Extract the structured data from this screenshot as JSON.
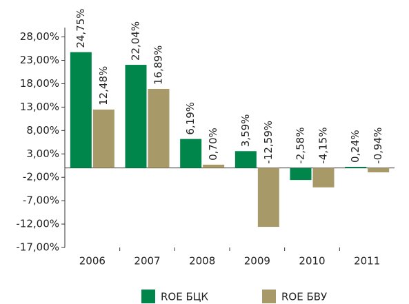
{
  "chart_data": {
    "type": "bar",
    "categories": [
      "2006",
      "2007",
      "2008",
      "2009",
      "2010",
      "2011"
    ],
    "series": [
      {
        "name": "ROE БЦК",
        "color": "#00854a",
        "values": [
          24.75,
          22.04,
          6.19,
          3.59,
          -2.58,
          0.24
        ],
        "value_labels": [
          "24,75%",
          "22,04%",
          "6,19%",
          "3,59%",
          "-2,58%",
          "0,24%"
        ]
      },
      {
        "name": "ROE БВУ",
        "color": "#a89968",
        "values": [
          12.48,
          16.89,
          0.7,
          -12.59,
          -4.15,
          -0.94
        ],
        "value_labels": [
          "12,48%",
          "16,89%",
          "0,70%",
          "-12,59%",
          "-4,15%",
          "-0,94%"
        ]
      }
    ],
    "ylim": [
      -17,
      30
    ],
    "yticks": [
      {
        "value": 28,
        "label": "28,00%"
      },
      {
        "value": 23,
        "label": "23,00%"
      },
      {
        "value": 18,
        "label": "18,00%"
      },
      {
        "value": 13,
        "label": "13,00%"
      },
      {
        "value": 8,
        "label": "8,00%"
      },
      {
        "value": 3,
        "label": "3,00%"
      },
      {
        "value": -2,
        "label": "-2,00%"
      },
      {
        "value": -7,
        "label": "-7,00%"
      },
      {
        "value": -12,
        "label": "-12,00%"
      },
      {
        "value": -17,
        "label": "-17,00%"
      }
    ]
  }
}
